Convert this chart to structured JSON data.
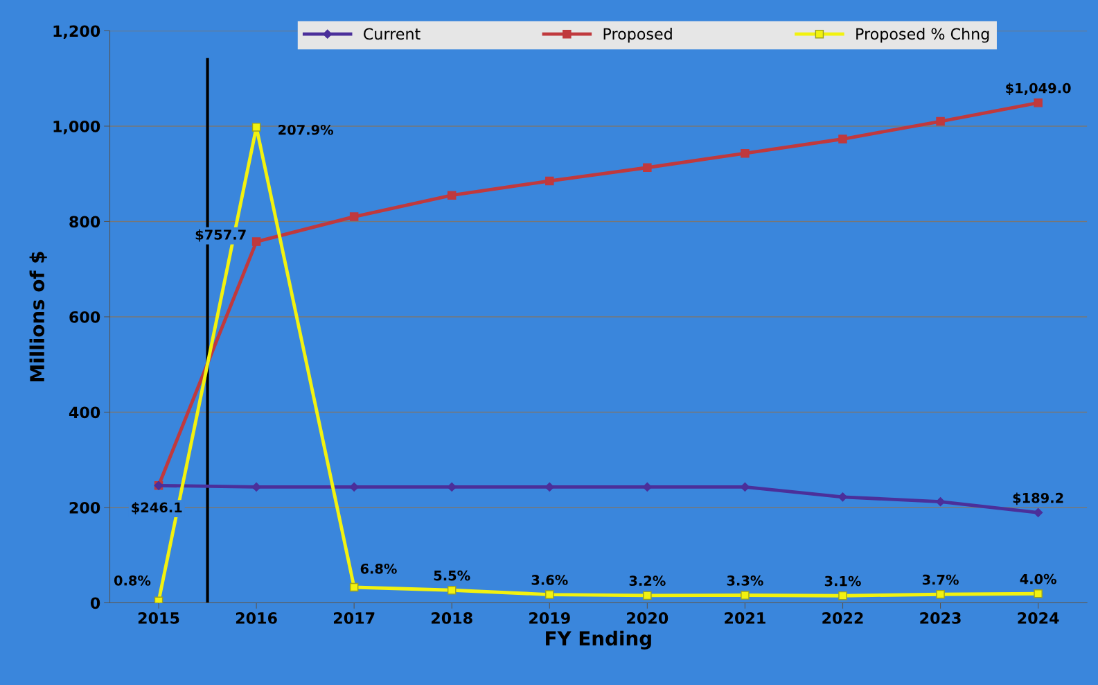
{
  "chart_data": {
    "type": "line",
    "xlabel": "FY Ending",
    "ylabel": "Millions of $",
    "x": [
      2015,
      2016,
      2017,
      2018,
      2019,
      2020,
      2021,
      2022,
      2023,
      2024
    ],
    "xlim": [
      2014.5,
      2024.5
    ],
    "xticks": [
      2015,
      2016,
      2017,
      2018,
      2019,
      2020,
      2021,
      2022,
      2023,
      2024
    ],
    "ylim": [
      0,
      1200
    ],
    "yticks": [
      0,
      {
        "value": 200,
        "label": "200"
      },
      {
        "value": 400,
        "label": "400"
      },
      {
        "value": 600,
        "label": "600"
      },
      {
        "value": 800,
        "label": "800"
      },
      {
        "value": 1000,
        "label": "1,000"
      },
      {
        "value": 1200,
        "label": "1,200"
      }
    ],
    "y2lim": [
      0,
      250
    ],
    "grid": "y",
    "legend": "top",
    "series": [
      {
        "name": "Current",
        "color": "#4b2f9a",
        "marker": "diamond",
        "values": [
          246,
          243,
          243,
          243,
          243,
          243,
          243,
          222,
          212,
          189.2
        ],
        "value_labels": [
          null,
          null,
          null,
          null,
          null,
          null,
          null,
          null,
          null,
          "$189.2"
        ]
      },
      {
        "name": "Proposed",
        "color": "#c0393d",
        "marker": "square",
        "values": [
          246.1,
          757.7,
          810,
          855,
          885,
          913,
          943,
          973,
          1010,
          1049.0
        ],
        "value_labels": [
          "$246.1",
          "$757.7",
          null,
          null,
          null,
          null,
          null,
          null,
          null,
          "$1,049.0"
        ]
      },
      {
        "name": "Proposed % Chng",
        "color": "#f2f20f",
        "marker": "square",
        "axis": "y2",
        "values": [
          0.8,
          207.9,
          6.8,
          5.5,
          3.6,
          3.2,
          3.3,
          3.1,
          3.7,
          4.0
        ],
        "value_labels": [
          "0.8%",
          "207.9%",
          "6.8%",
          "5.5%",
          "3.6%",
          "3.2%",
          "3.3%",
          "3.1%",
          "3.7%",
          "4.0%"
        ]
      }
    ],
    "ref_lines": [
      {
        "axis": "x",
        "value": 2015.5,
        "color": "#000000"
      }
    ]
  }
}
